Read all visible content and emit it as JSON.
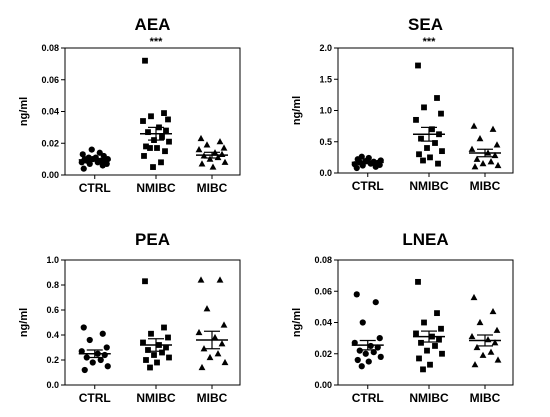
{
  "chart_data": [
    {
      "type": "scatter",
      "title": "AEA",
      "ylabel": "ng/ml",
      "ylim": [
        0,
        0.08
      ],
      "yticks": [
        "0.00",
        "0.02",
        "0.04",
        "0.06",
        "0.08"
      ],
      "categories": [
        "CTRL",
        "NMIBC",
        "MIBC"
      ],
      "annotation": {
        "text": "***",
        "category": "NMIBC"
      },
      "series": [
        {
          "category": "CTRL",
          "marker": "circle",
          "mean": 0.0095,
          "sem": 0.0008,
          "values": [
            0.004,
            0.006,
            0.007,
            0.007,
            0.008,
            0.008,
            0.009,
            0.009,
            0.009,
            0.01,
            0.01,
            0.01,
            0.011,
            0.011,
            0.012,
            0.013,
            0.014,
            0.016
          ]
        },
        {
          "category": "NMIBC",
          "marker": "square",
          "mean": 0.026,
          "sem": 0.004,
          "values": [
            0.072,
            0.039,
            0.037,
            0.035,
            0.034,
            0.03,
            0.028,
            0.027,
            0.024,
            0.022,
            0.021,
            0.018,
            0.017,
            0.017,
            0.015,
            0.012,
            0.008,
            0.005
          ]
        },
        {
          "category": "MIBC",
          "marker": "triangle",
          "mean": 0.0125,
          "sem": 0.0018,
          "values": [
            0.023,
            0.021,
            0.019,
            0.017,
            0.016,
            0.014,
            0.013,
            0.012,
            0.011,
            0.01,
            0.008,
            0.007,
            0.005
          ]
        }
      ]
    },
    {
      "type": "scatter",
      "title": "SEA",
      "ylabel": "ng/ml",
      "ylim": [
        0,
        2.0
      ],
      "yticks": [
        "0.0",
        "0.5",
        "1.0",
        "1.5",
        "2.0"
      ],
      "categories": [
        "CTRL",
        "NMIBC",
        "MIBC"
      ],
      "annotation": {
        "text": "***",
        "category": "NMIBC"
      },
      "series": [
        {
          "category": "CTRL",
          "marker": "circle",
          "mean": 0.17,
          "sem": 0.02,
          "values": [
            0.08,
            0.1,
            0.12,
            0.13,
            0.14,
            0.15,
            0.16,
            0.17,
            0.18,
            0.19,
            0.2,
            0.22,
            0.24,
            0.26
          ]
        },
        {
          "category": "NMIBC",
          "marker": "square",
          "mean": 0.62,
          "sem": 0.11,
          "values": [
            1.72,
            1.2,
            1.05,
            0.95,
            0.85,
            0.7,
            0.62,
            0.55,
            0.48,
            0.4,
            0.35,
            0.3,
            0.25,
            0.2,
            0.15
          ]
        },
        {
          "category": "MIBC",
          "marker": "triangle",
          "mean": 0.32,
          "sem": 0.06,
          "values": [
            0.75,
            0.7,
            0.55,
            0.45,
            0.38,
            0.32,
            0.28,
            0.22,
            0.18,
            0.15,
            0.12,
            0.1
          ]
        }
      ]
    },
    {
      "type": "scatter",
      "title": "PEA",
      "ylabel": "ng/ml",
      "ylim": [
        0,
        1.0
      ],
      "yticks": [
        "0.0",
        "0.2",
        "0.4",
        "0.6",
        "0.8",
        "1.0"
      ],
      "categories": [
        "CTRL",
        "NMIBC",
        "MIBC"
      ],
      "series": [
        {
          "category": "CTRL",
          "marker": "circle",
          "mean": 0.25,
          "sem": 0.03,
          "values": [
            0.46,
            0.41,
            0.36,
            0.3,
            0.27,
            0.25,
            0.24,
            0.22,
            0.2,
            0.18,
            0.15,
            0.12
          ]
        },
        {
          "category": "NMIBC",
          "marker": "square",
          "mean": 0.32,
          "sem": 0.05,
          "values": [
            0.83,
            0.46,
            0.41,
            0.38,
            0.34,
            0.32,
            0.3,
            0.28,
            0.26,
            0.24,
            0.22,
            0.2,
            0.18,
            0.14
          ]
        },
        {
          "category": "MIBC",
          "marker": "triangle",
          "mean": 0.36,
          "sem": 0.07,
          "values": [
            0.84,
            0.84,
            0.61,
            0.48,
            0.42,
            0.38,
            0.33,
            0.29,
            0.25,
            0.22,
            0.18,
            0.14
          ]
        }
      ]
    },
    {
      "type": "scatter",
      "title": "LNEA",
      "ylabel": "ng/ml",
      "ylim": [
        0,
        0.08
      ],
      "yticks": [
        "0.00",
        "0.02",
        "0.04",
        "0.06",
        "0.08"
      ],
      "categories": [
        "CTRL",
        "NMIBC",
        "MIBC"
      ],
      "series": [
        {
          "category": "CTRL",
          "marker": "circle",
          "mean": 0.0255,
          "sem": 0.003,
          "values": [
            0.058,
            0.053,
            0.04,
            0.03,
            0.027,
            0.025,
            0.024,
            0.022,
            0.021,
            0.02,
            0.018,
            0.016,
            0.015,
            0.012
          ]
        },
        {
          "category": "NMIBC",
          "marker": "square",
          "mean": 0.031,
          "sem": 0.0035,
          "values": [
            0.066,
            0.046,
            0.04,
            0.036,
            0.033,
            0.031,
            0.029,
            0.027,
            0.025,
            0.022,
            0.02,
            0.017,
            0.013,
            0.01
          ]
        },
        {
          "category": "MIBC",
          "marker": "triangle",
          "mean": 0.0285,
          "sem": 0.0035,
          "values": [
            0.056,
            0.047,
            0.04,
            0.035,
            0.031,
            0.029,
            0.027,
            0.024,
            0.021,
            0.019,
            0.016,
            0.013
          ]
        }
      ]
    }
  ]
}
